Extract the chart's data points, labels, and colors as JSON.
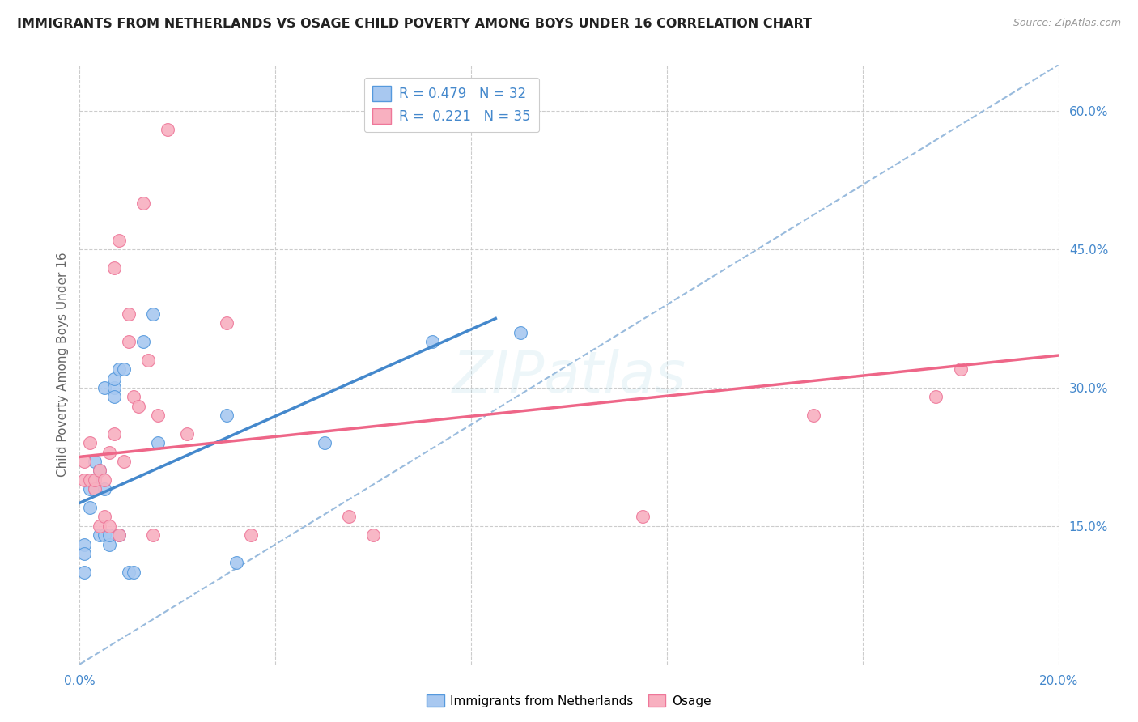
{
  "title": "IMMIGRANTS FROM NETHERLANDS VS OSAGE CHILD POVERTY AMONG BOYS UNDER 16 CORRELATION CHART",
  "source": "Source: ZipAtlas.com",
  "ylabel": "Child Poverty Among Boys Under 16",
  "xlim": [
    0.0,
    0.2
  ],
  "ylim": [
    0.0,
    0.65
  ],
  "xtick_vals": [
    0.0,
    0.04,
    0.08,
    0.12,
    0.16,
    0.2
  ],
  "xtick_labels": [
    "0.0%",
    "",
    "",
    "",
    "",
    "20.0%"
  ],
  "ytick_right_vals": [
    0.15,
    0.3,
    0.45,
    0.6
  ],
  "ytick_right_labels": [
    "15.0%",
    "30.0%",
    "45.0%",
    "60.0%"
  ],
  "grid_color": "#cccccc",
  "background_color": "#ffffff",
  "blue_fill": "#a8c8f0",
  "blue_edge": "#5599dd",
  "pink_fill": "#f8b0c0",
  "pink_edge": "#ee7799",
  "blue_line_color": "#4488cc",
  "pink_line_color": "#ee6688",
  "dashed_line_color": "#99bbdd",
  "legend_r_blue": "0.479",
  "legend_n_blue": "32",
  "legend_r_pink": "0.221",
  "legend_n_pink": "35",
  "legend_label_blue": "Immigrants from Netherlands",
  "legend_label_pink": "Osage",
  "blue_x": [
    0.001,
    0.001,
    0.001,
    0.002,
    0.002,
    0.002,
    0.003,
    0.003,
    0.003,
    0.004,
    0.004,
    0.005,
    0.005,
    0.005,
    0.006,
    0.006,
    0.007,
    0.007,
    0.007,
    0.008,
    0.008,
    0.009,
    0.01,
    0.011,
    0.013,
    0.015,
    0.016,
    0.03,
    0.032,
    0.05,
    0.072,
    0.09
  ],
  "blue_y": [
    0.13,
    0.1,
    0.12,
    0.17,
    0.2,
    0.19,
    0.2,
    0.19,
    0.22,
    0.14,
    0.21,
    0.14,
    0.19,
    0.3,
    0.13,
    0.14,
    0.3,
    0.31,
    0.29,
    0.32,
    0.14,
    0.32,
    0.1,
    0.1,
    0.35,
    0.38,
    0.24,
    0.27,
    0.11,
    0.24,
    0.35,
    0.36
  ],
  "pink_x": [
    0.001,
    0.001,
    0.002,
    0.002,
    0.003,
    0.003,
    0.004,
    0.004,
    0.005,
    0.005,
    0.006,
    0.006,
    0.007,
    0.007,
    0.008,
    0.008,
    0.009,
    0.01,
    0.01,
    0.011,
    0.012,
    0.013,
    0.014,
    0.015,
    0.016,
    0.018,
    0.022,
    0.03,
    0.035,
    0.055,
    0.06,
    0.115,
    0.15,
    0.175,
    0.18
  ],
  "pink_y": [
    0.2,
    0.22,
    0.24,
    0.2,
    0.19,
    0.2,
    0.21,
    0.15,
    0.16,
    0.2,
    0.15,
    0.23,
    0.25,
    0.43,
    0.14,
    0.46,
    0.22,
    0.38,
    0.35,
    0.29,
    0.28,
    0.5,
    0.33,
    0.14,
    0.27,
    0.58,
    0.25,
    0.37,
    0.14,
    0.16,
    0.14,
    0.16,
    0.27,
    0.29,
    0.32
  ],
  "blue_line_x0": 0.0,
  "blue_line_y0": 0.175,
  "blue_line_x1": 0.085,
  "blue_line_y1": 0.375,
  "pink_line_x0": 0.0,
  "pink_line_y0": 0.225,
  "pink_line_x1": 0.2,
  "pink_line_y1": 0.335,
  "dash_line_x0": 0.0,
  "dash_line_y0": 0.0,
  "dash_line_x1": 0.2,
  "dash_line_y1": 0.65
}
